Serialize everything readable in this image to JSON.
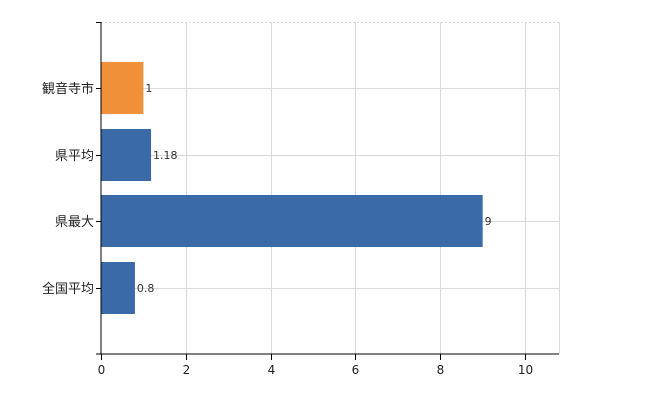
{
  "chart_data": {
    "type": "bar",
    "orientation": "horizontal",
    "categories": [
      "観音寺市",
      "県平均",
      "県最大",
      "全国平均"
    ],
    "values": [
      1,
      1.18,
      9,
      0.8
    ],
    "data_labels": [
      "1",
      "1.18",
      "9",
      "0.8"
    ],
    "bar_colors": [
      "#f0913a",
      "#3a6aa8",
      "#3a6aa8",
      "#3a6aa8"
    ],
    "xlim": [
      0,
      10.8
    ],
    "x_ticks": [
      0,
      2,
      4,
      6,
      8,
      10
    ],
    "x_tick_labels": [
      "0",
      "2",
      "4",
      "6",
      "8",
      "10"
    ],
    "grid": true,
    "title": "",
    "xlabel": "",
    "ylabel": ""
  }
}
